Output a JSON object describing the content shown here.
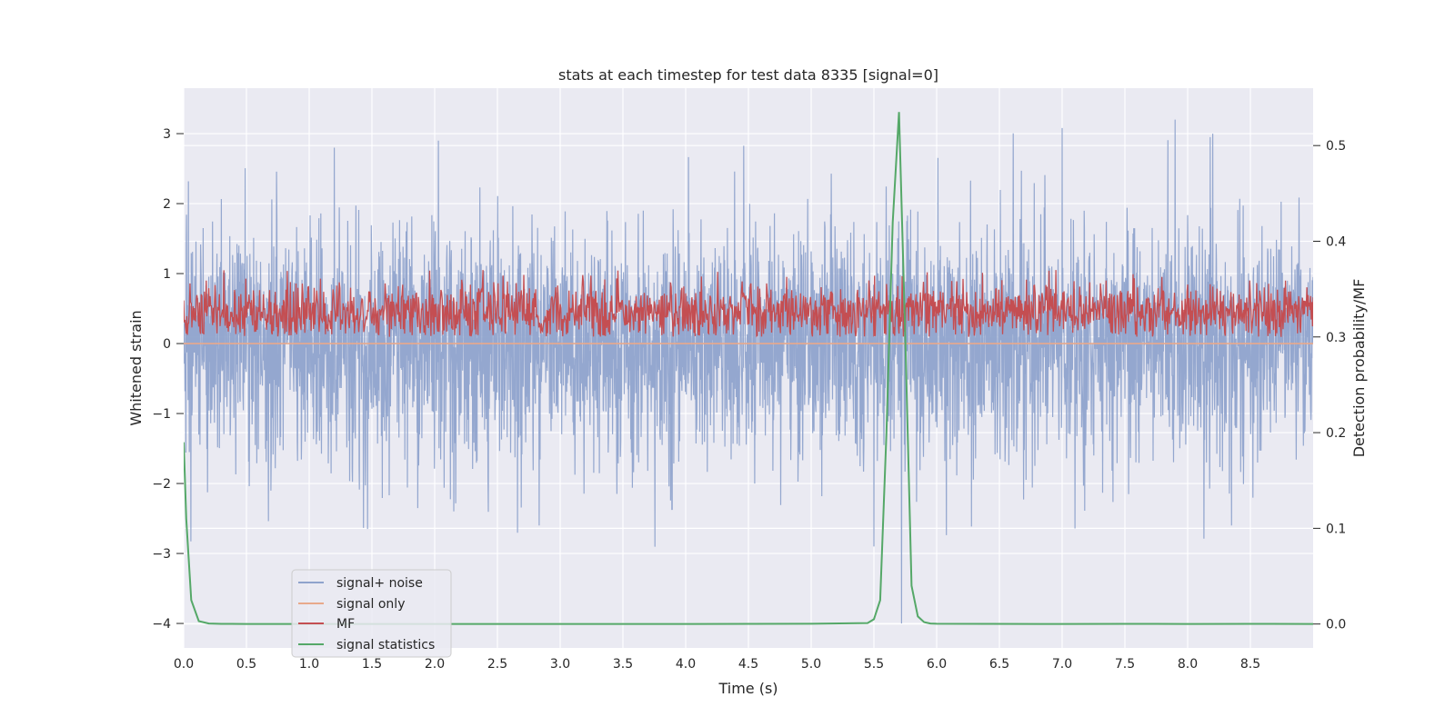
{
  "chart_data": {
    "type": "line",
    "title": "stats at each timestep for test data 8335 [signal=0]",
    "xlabel": "Time (s)",
    "ylabel": "Whitened strain",
    "y2label": "Detection probability/MF",
    "xlim": [
      0.0,
      9.0
    ],
    "ylim": [
      -4.35,
      3.65
    ],
    "y2lim": [
      -0.025,
      0.56
    ],
    "x_ticks": [
      "0.0",
      "0.5",
      "1.0",
      "1.5",
      "2.0",
      "2.5",
      "3.0",
      "3.5",
      "4.0",
      "4.5",
      "5.0",
      "5.5",
      "6.0",
      "6.5",
      "7.0",
      "7.5",
      "8.0",
      "8.5"
    ],
    "y_ticks": [
      "−4",
      "−3",
      "−2",
      "−1",
      "0",
      "1",
      "2",
      "3"
    ],
    "y2_ticks": [
      "0.0",
      "0.1",
      "0.2",
      "0.3",
      "0.4",
      "0.5"
    ],
    "grid": true,
    "legend_position": "lower-left",
    "series": [
      {
        "name": "signal+ noise",
        "axis": "left",
        "color": "#8fa3cc",
        "style": "dense-noise",
        "sample_rate_hz": 400,
        "noise_max_abs": 3.3,
        "x_extremes": [
          1.2,
          2.03,
          5.72,
          7.9,
          8.2,
          8.35,
          5.5
        ],
        "y_extremes": [
          2.8,
          2.9,
          -4.0,
          3.2,
          3.0,
          -2.6,
          -2.9
        ]
      },
      {
        "name": "signal only",
        "axis": "left",
        "color": "#e8a98b",
        "x": [
          0.0,
          9.0
        ],
        "y": [
          0.0,
          0.0
        ]
      },
      {
        "name": "MF",
        "axis": "right",
        "color": "#c44e52",
        "style": "dense-noise",
        "baseline": 0.3,
        "mean": 0.325,
        "max": 0.37
      },
      {
        "name": "signal statistics",
        "axis": "right",
        "color": "#55a868",
        "x": [
          0.0,
          0.02,
          0.06,
          0.12,
          0.2,
          0.3,
          0.5,
          1.0,
          2.0,
          3.0,
          4.0,
          5.0,
          5.45,
          5.5,
          5.55,
          5.6,
          5.65,
          5.7,
          5.75,
          5.8,
          5.85,
          5.9,
          5.95,
          6.0,
          7.0,
          7.5,
          8.0,
          8.5,
          9.0
        ],
        "y": [
          0.19,
          0.11,
          0.025,
          0.003,
          0.0005,
          0.0002,
          0.0001,
          0.0001,
          0.0001,
          0.0001,
          0.0001,
          0.0003,
          0.001,
          0.005,
          0.025,
          0.2,
          0.42,
          0.535,
          0.3,
          0.04,
          0.008,
          0.002,
          0.0005,
          0.0003,
          0.0001,
          0.0002,
          0.0001,
          0.0002,
          0.0001
        ]
      }
    ]
  }
}
